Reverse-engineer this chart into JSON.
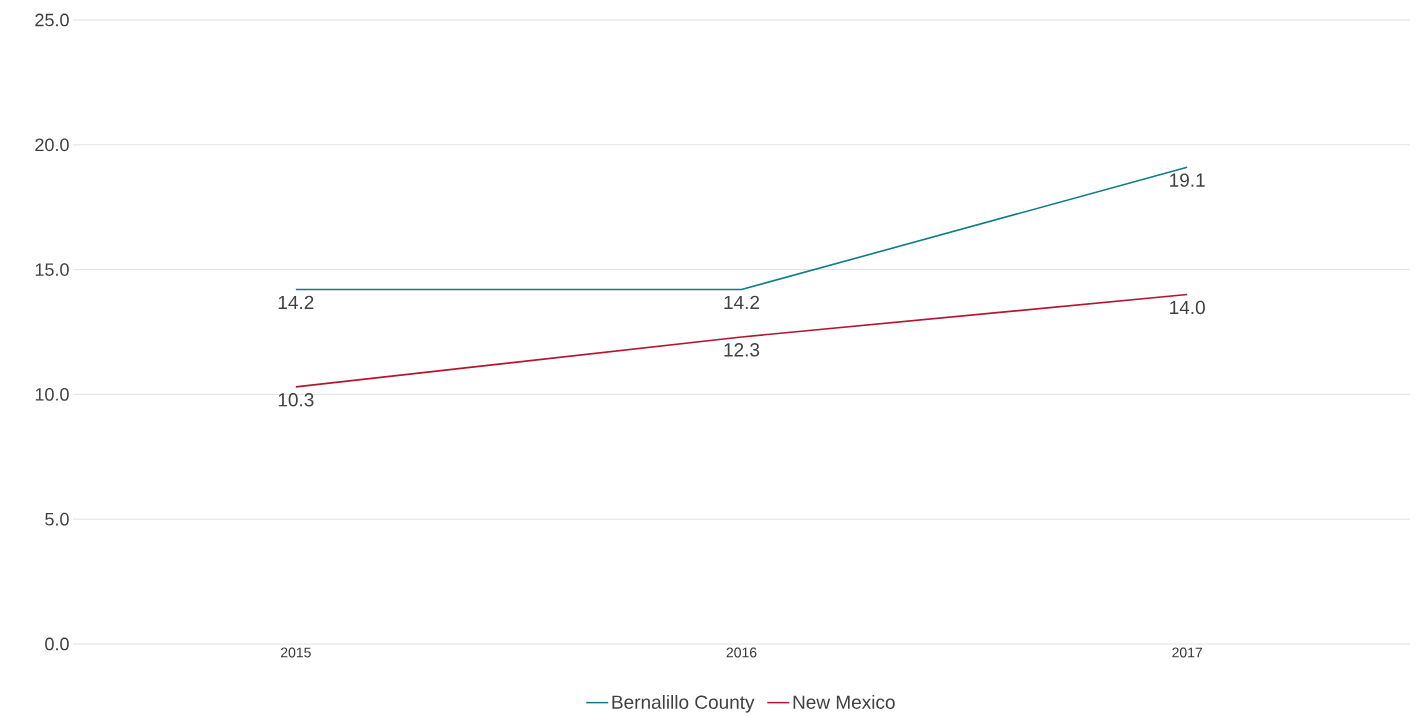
{
  "chart_data": {
    "type": "line",
    "categories": [
      "2015",
      "2016",
      "2017"
    ],
    "series": [
      {
        "name": "Bernalillo County",
        "color": "#0e7c86",
        "values": [
          14.2,
          14.2,
          19.1
        ],
        "value_labels": [
          "14.2",
          "14.2",
          "19.1"
        ]
      },
      {
        "name": "New Mexico",
        "color": "#b5142e",
        "values": [
          10.3,
          12.3,
          14.0
        ],
        "value_labels": [
          "10.3",
          "12.3",
          "14.0"
        ]
      }
    ],
    "ylim": [
      0,
      25
    ],
    "yticks": [
      {
        "value": 0,
        "label": "0.0"
      },
      {
        "value": 5,
        "label": "5.0"
      },
      {
        "value": 10,
        "label": "10.0"
      },
      {
        "value": 15,
        "label": "15.0"
      },
      {
        "value": 20,
        "label": "20.0"
      },
      {
        "value": 25,
        "label": "25.0"
      }
    ],
    "grid": "y",
    "legend": "bottom"
  }
}
